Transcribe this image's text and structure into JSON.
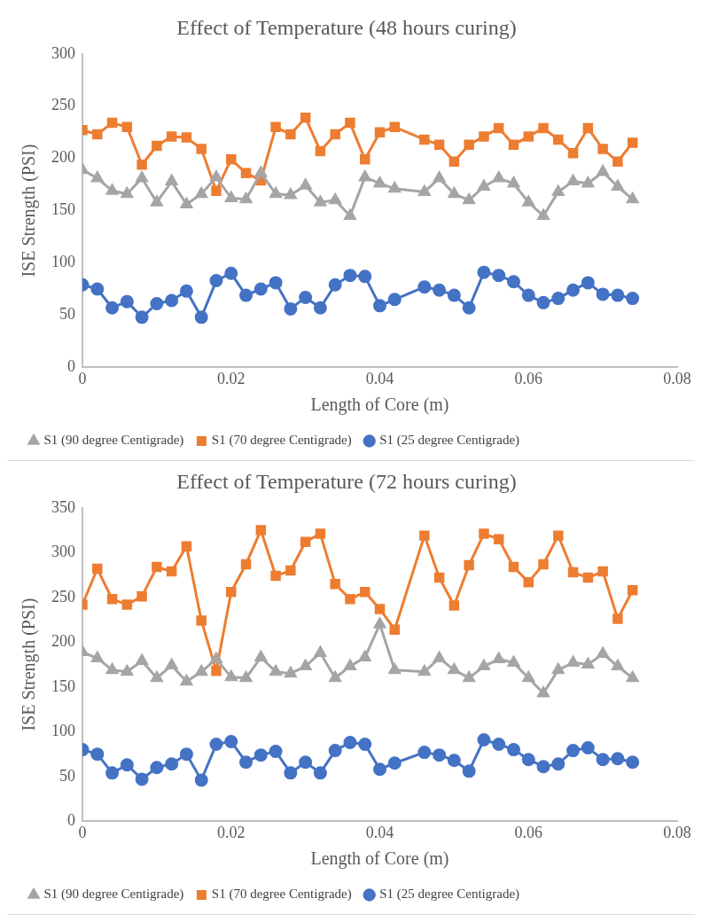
{
  "chart_data": [
    {
      "type": "line",
      "title": "Effect of Temperature (48 hours curing)",
      "xlabel": "Length of Core (m)",
      "ylabel": "ISE Strength (PSI)",
      "x": [
        0,
        0.002,
        0.004,
        0.006,
        0.008,
        0.01,
        0.012,
        0.014,
        0.016,
        0.018,
        0.02,
        0.022,
        0.024,
        0.026,
        0.028,
        0.03,
        0.032,
        0.034,
        0.036,
        0.038,
        0.04,
        0.042,
        0.046,
        0.048,
        0.05,
        0.052,
        0.054,
        0.056,
        0.058,
        0.06,
        0.062,
        0.064,
        0.066,
        0.068,
        0.07,
        0.072,
        0.074
      ],
      "xlim": [
        0,
        0.08
      ],
      "xticks": [
        0,
        0.02,
        0.04,
        0.06,
        0.08
      ],
      "ylim": [
        0,
        300
      ],
      "yticks": [
        0,
        50,
        100,
        150,
        200,
        250,
        300
      ],
      "grid": false,
      "legend": "bottom",
      "series": [
        {
          "name": "S1 (25 degree Centigrade)",
          "color": "#4472c4",
          "marker": "circle",
          "values": [
            79,
            75,
            57,
            63,
            48,
            61,
            64,
            73,
            48,
            83,
            90,
            69,
            75,
            81,
            56,
            67,
            57,
            79,
            88,
            87,
            59,
            65,
            77,
            74,
            69,
            57,
            91,
            88,
            82,
            69,
            62,
            66,
            74,
            81,
            70,
            69,
            66
          ]
        },
        {
          "name": "S1 (70 degree Centigrade)",
          "color": "#ed7d31",
          "marker": "square",
          "values": [
            227,
            223,
            234,
            230,
            194,
            212,
            221,
            220,
            209,
            169,
            199,
            186,
            179,
            230,
            223,
            239,
            207,
            223,
            234,
            199,
            225,
            230,
            218,
            213,
            197,
            213,
            221,
            229,
            213,
            221,
            229,
            218,
            205,
            229,
            209,
            197,
            215
          ]
        },
        {
          "name": "S1 (90 degree Centigrade)",
          "color": "#a5a5a5",
          "marker": "triangle",
          "values": [
            189,
            181,
            169,
            166,
            181,
            158,
            178,
            156,
            166,
            182,
            162,
            161,
            186,
            166,
            165,
            174,
            158,
            160,
            145,
            182,
            176,
            171,
            168,
            181,
            166,
            160,
            173,
            181,
            176,
            158,
            145,
            168,
            178,
            176,
            187,
            173,
            161
          ]
        }
      ]
    },
    {
      "type": "line",
      "title": "Effect of Temperature (72 hours curing)",
      "xlabel": "Length of Core (m)",
      "ylabel": "ISE Strength (PSI)",
      "x": [
        0,
        0.002,
        0.004,
        0.006,
        0.008,
        0.01,
        0.012,
        0.014,
        0.016,
        0.018,
        0.02,
        0.022,
        0.024,
        0.026,
        0.028,
        0.03,
        0.032,
        0.034,
        0.036,
        0.038,
        0.04,
        0.042,
        0.046,
        0.048,
        0.05,
        0.052,
        0.054,
        0.056,
        0.058,
        0.06,
        0.062,
        0.064,
        0.066,
        0.068,
        0.07,
        0.072,
        0.074
      ],
      "xlim": [
        0,
        0.08
      ],
      "xticks": [
        0,
        0.02,
        0.04,
        0.06,
        0.08
      ],
      "ylim": [
        0,
        350
      ],
      "yticks": [
        0,
        50,
        100,
        150,
        200,
        250,
        300,
        350
      ],
      "grid": false,
      "legend": "bottom",
      "series": [
        {
          "name": "S1 (25 degree Centigrade)",
          "color": "#4472c4",
          "marker": "circle",
          "values": [
            80,
            75,
            54,
            63,
            47,
            60,
            64,
            75,
            46,
            86,
            89,
            66,
            74,
            78,
            54,
            66,
            54,
            79,
            88,
            86,
            58,
            65,
            77,
            74,
            68,
            56,
            91,
            86,
            80,
            69,
            61,
            64,
            79,
            82,
            69,
            70,
            66
          ]
        },
        {
          "name": "S1 (70 degree Centigrade)",
          "color": "#ed7d31",
          "marker": "square",
          "values": [
            242,
            282,
            248,
            242,
            251,
            284,
            279,
            307,
            224,
            168,
            256,
            287,
            325,
            274,
            280,
            312,
            321,
            265,
            248,
            256,
            237,
            214,
            319,
            272,
            241,
            286,
            321,
            315,
            284,
            267,
            287,
            319,
            278,
            272,
            279,
            226,
            258
          ]
        },
        {
          "name": "S1 (90 degree Centigrade)",
          "color": "#a5a5a5",
          "marker": "triangle",
          "values": [
            189,
            182,
            169,
            167,
            179,
            160,
            174,
            156,
            167,
            181,
            161,
            160,
            183,
            167,
            165,
            173,
            188,
            160,
            173,
            183,
            220,
            169,
            167,
            182,
            169,
            160,
            173,
            181,
            177,
            160,
            143,
            169,
            177,
            175,
            187,
            173,
            160
          ]
        }
      ]
    }
  ]
}
